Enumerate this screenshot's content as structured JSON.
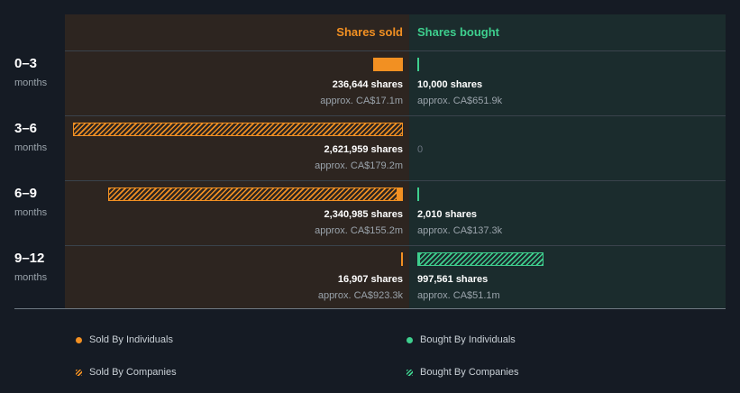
{
  "colors": {
    "sold": "#f29022",
    "bought": "#3ecf8e"
  },
  "header": {
    "sold": "Shares sold",
    "bought": "Shares bought"
  },
  "chart_data": {
    "type": "bar",
    "categories": [
      "0–3",
      "3–6",
      "6–9",
      "9–12"
    ],
    "period_unit": "months",
    "periods": [
      {
        "label": "0–3",
        "unit": "months",
        "sold": {
          "shares_text": "236,644 shares",
          "approx_text": "approx. CA$17.1m",
          "individuals": 236644,
          "companies": 0
        },
        "bought": {
          "shares_text": "10,000 shares",
          "approx_text": "approx. CA$651.9k",
          "individuals": 10000,
          "companies": 0
        }
      },
      {
        "label": "3–6",
        "unit": "months",
        "sold": {
          "shares_text": "2,621,959 shares",
          "approx_text": "approx. CA$179.2m",
          "individuals": 0,
          "companies": 2621959
        },
        "bought": {
          "zero_text": "0",
          "individuals": 0,
          "companies": 0
        }
      },
      {
        "label": "6–9",
        "unit": "months",
        "sold": {
          "shares_text": "2,340,985 shares",
          "approx_text": "approx. CA$155.2m",
          "individuals": 40000,
          "companies": 2300985
        },
        "bought": {
          "shares_text": "2,010 shares",
          "approx_text": "approx. CA$137.3k",
          "individuals": 2010,
          "companies": 0
        }
      },
      {
        "label": "9–12",
        "unit": "months",
        "sold": {
          "shares_text": "16,907 shares",
          "approx_text": "approx. CA$923.3k",
          "individuals": 16907,
          "companies": 0
        },
        "bought": {
          "shares_text": "997,561 shares",
          "approx_text": "approx. CA$51.1m",
          "individuals": 12000,
          "companies": 985561
        }
      }
    ],
    "legend": [
      "Sold By Individuals",
      "Bought By Individuals",
      "Sold By Companies",
      "Bought By Companies"
    ]
  }
}
